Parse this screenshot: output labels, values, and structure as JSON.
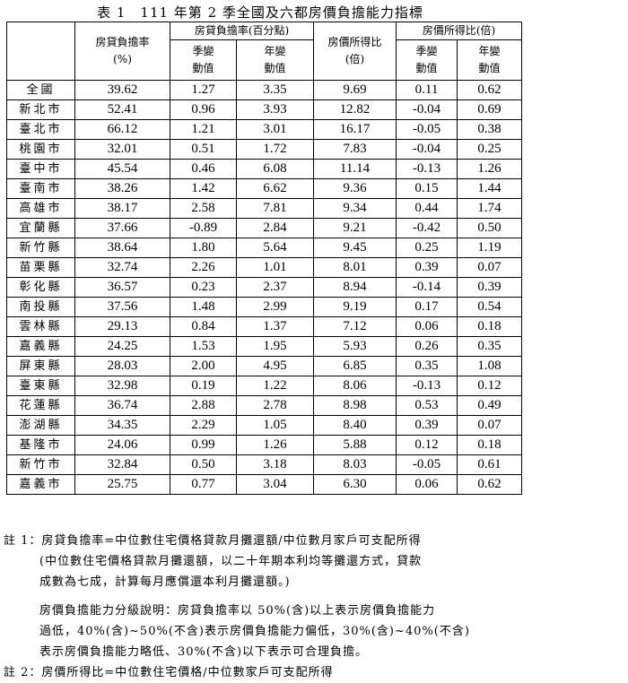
{
  "title": "表 1　111 年第 2 季全國及六都房價負擔能力指標",
  "headers": {
    "rate": "房貸負擔率",
    "rate_unit": "(%)",
    "rate_change": "房貸負擔率(百分點)",
    "ratio": "房價所得比",
    "ratio_unit": "(倍)",
    "ratio_change": "房價所得比(倍)",
    "qoq_a": "季變",
    "qoq_b": "動值",
    "yoy_a": "年變",
    "yoy_b": "動值"
  },
  "rows": [
    [
      "全國",
      "39.62",
      "1.27",
      "3.35",
      "9.69",
      "0.11",
      "0.62"
    ],
    [
      "新北市",
      "52.41",
      "0.96",
      "3.93",
      "12.82",
      "-0.04",
      "0.69"
    ],
    [
      "臺北市",
      "66.12",
      "1.21",
      "3.01",
      "16.17",
      "-0.05",
      "0.38"
    ],
    [
      "桃園市",
      "32.01",
      "0.51",
      "1.72",
      "7.83",
      "-0.04",
      "0.25"
    ],
    [
      "臺中市",
      "45.54",
      "0.46",
      "6.08",
      "11.14",
      "-0.13",
      "1.26"
    ],
    [
      "臺南市",
      "38.26",
      "1.42",
      "6.62",
      "9.36",
      "0.15",
      "1.44"
    ],
    [
      "高雄市",
      "38.17",
      "2.58",
      "7.81",
      "9.34",
      "0.44",
      "1.74"
    ],
    [
      "宜蘭縣",
      "37.66",
      "-0.89",
      "2.84",
      "9.21",
      "-0.42",
      "0.50"
    ],
    [
      "新竹縣",
      "38.64",
      "1.80",
      "5.64",
      "9.45",
      "0.25",
      "1.19"
    ],
    [
      "苗栗縣",
      "32.74",
      "2.26",
      "1.01",
      "8.01",
      "0.39",
      "0.07"
    ],
    [
      "彰化縣",
      "36.57",
      "0.23",
      "2.37",
      "8.94",
      "-0.14",
      "0.39"
    ],
    [
      "南投縣",
      "37.56",
      "1.48",
      "2.99",
      "9.19",
      "0.17",
      "0.54"
    ],
    [
      "雲林縣",
      "29.13",
      "0.84",
      "1.37",
      "7.12",
      "0.06",
      "0.18"
    ],
    [
      "嘉義縣",
      "24.25",
      "1.53",
      "1.95",
      "5.93",
      "0.26",
      "0.35"
    ],
    [
      "屏東縣",
      "28.03",
      "2.00",
      "4.95",
      "6.85",
      "0.35",
      "1.08"
    ],
    [
      "臺東縣",
      "32.98",
      "0.19",
      "1.22",
      "8.06",
      "-0.13",
      "0.12"
    ],
    [
      "花蓮縣",
      "36.74",
      "2.88",
      "2.78",
      "8.98",
      "0.53",
      "0.49"
    ],
    [
      "澎湖縣",
      "34.35",
      "2.29",
      "1.05",
      "8.40",
      "0.39",
      "0.07"
    ],
    [
      "基隆市",
      "24.06",
      "0.99",
      "1.26",
      "5.88",
      "0.12",
      "0.18"
    ],
    [
      "新竹市",
      "32.84",
      "0.50",
      "3.18",
      "8.03",
      "-0.05",
      "0.61"
    ],
    [
      "嘉義市",
      "25.75",
      "0.77",
      "3.04",
      "6.30",
      "0.06",
      "0.62"
    ]
  ],
  "notes": {
    "n1_line1": "註 1：房貸負擔率=中位數住宅價格貸款月攤還額/中位數月家戶可支配所得",
    "n1_line2": "(中位數住宅價格貸款月攤還額，以二十年期本利均等攤還方式，貸款",
    "n1_line3": "成數為七成，計算每月應償還本利月攤還額。)",
    "n1_line4": "房價負擔能力分級說明：房貸負擔率以 50%(含)以上表示房價負擔能力",
    "n1_line5": "過低，40%(含)~50%(不含)表示房價負擔能力偏低，30%(含)~40%(不含)",
    "n1_line6": "表示房價負擔能力略低、30%(不含)以下表示可合理負擔。",
    "n2_line1": "註 2：房價所得比=中位數住宅價格/中位數家戶可支配所得"
  }
}
